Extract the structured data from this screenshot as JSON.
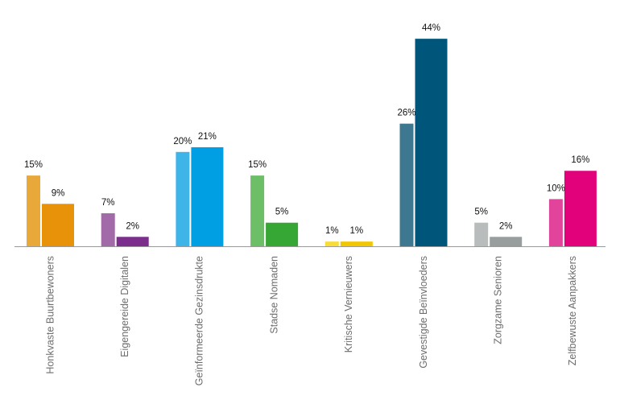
{
  "chart_data": {
    "type": "bar",
    "categories": [
      "Honkvaste Buurtbewoners",
      "Eigengereide Digitalen",
      "Geïnformeerde Gezinsdrukte",
      "Stadse Nomaden",
      "Kritische Vernieuwers",
      "Gevestigde Beïnvloeders",
      "Zorgzame Senioren",
      "Zelfbewuste Aanpakkers"
    ],
    "series": [
      {
        "values": [
          15,
          7,
          20,
          15,
          1,
          26,
          5,
          10
        ],
        "labels": [
          "15%",
          "7%",
          "20%",
          "15%",
          "1%",
          "26%",
          "5%",
          "10%"
        ]
      },
      {
        "values": [
          9,
          2,
          21,
          5,
          1,
          44,
          2,
          16
        ],
        "labels": [
          "9%",
          "2%",
          "21%",
          "5%",
          "1%",
          "44%",
          "2%",
          "16%"
        ]
      }
    ],
    "colors_first": [
      "#e8a93a",
      "#a26aa8",
      "#3fb4e8",
      "#6dbf67",
      "#f7dc3a",
      "#3e7890",
      "#b8bcbc",
      "#e2449c"
    ],
    "colors_second": [
      "#e8920a",
      "#7b2e8c",
      "#009fe3",
      "#36a635",
      "#f2c700",
      "#00557a",
      "#989e9e",
      "#e3007b"
    ],
    "value_unit": "%",
    "ylim": [
      0,
      44
    ],
    "grid": false,
    "legend": "none",
    "title": "",
    "xlabel": "",
    "ylabel": ""
  }
}
